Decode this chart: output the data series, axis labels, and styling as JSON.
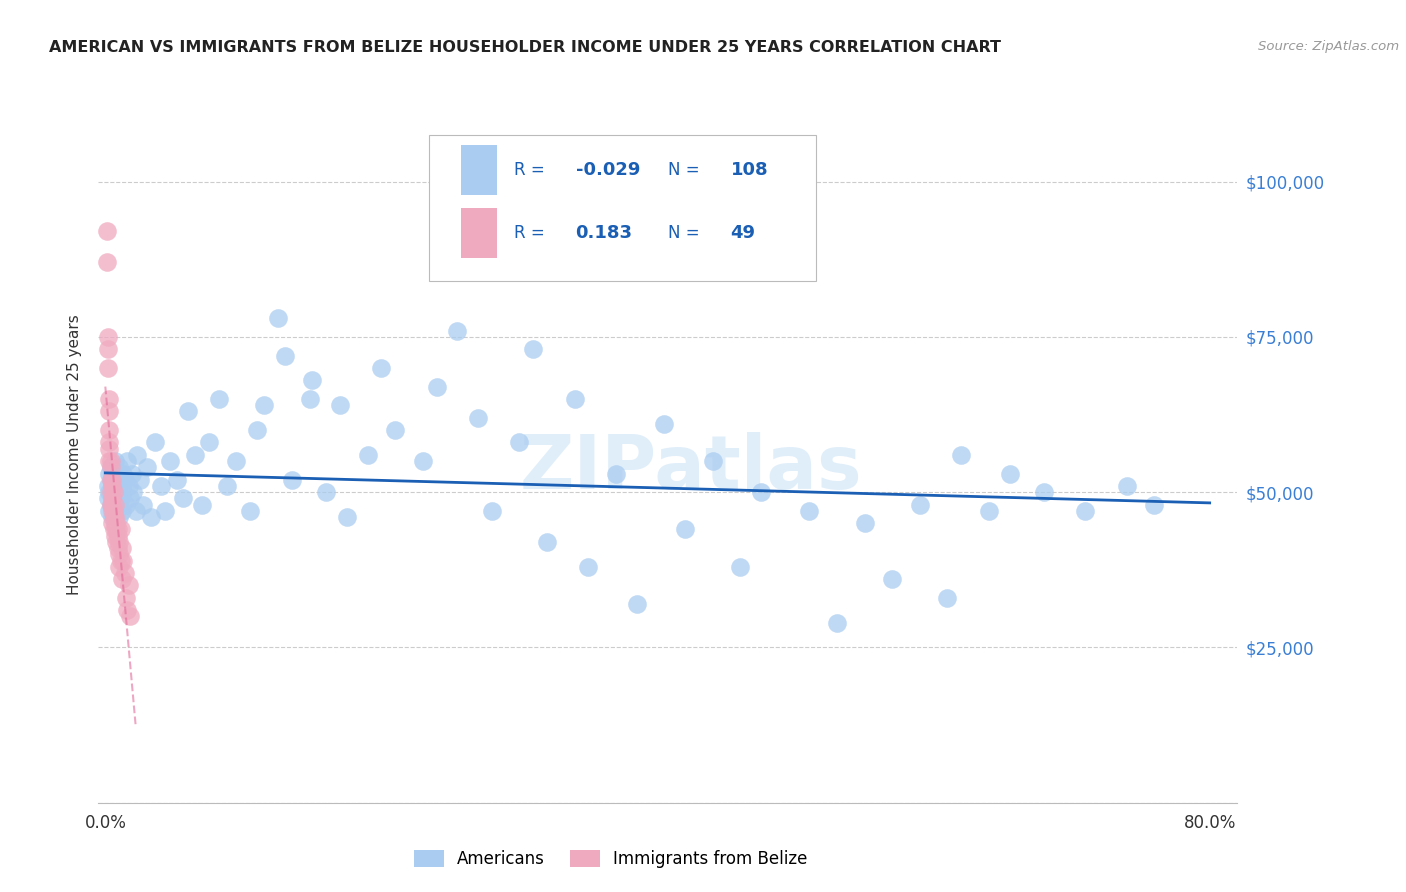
{
  "title": "AMERICAN VS IMMIGRANTS FROM BELIZE HOUSEHOLDER INCOME UNDER 25 YEARS CORRELATION CHART",
  "source": "Source: ZipAtlas.com",
  "ylabel": "Householder Income Under 25 years",
  "xlim": [
    -0.005,
    0.82
  ],
  "ylim": [
    0,
    112000
  ],
  "yticks": [
    0,
    25000,
    50000,
    75000,
    100000
  ],
  "ytick_labels": [
    "",
    "$25,000",
    "$50,000",
    "$75,000",
    "$100,000"
  ],
  "watermark": "ZIPatlas",
  "blue_color": "#aaccf0",
  "pink_color": "#f0aac0",
  "trendline_blue": "#1a5fb4",
  "trendline_pink": "#e06090",
  "americans_x": [
    0.002,
    0.002,
    0.003,
    0.003,
    0.003,
    0.004,
    0.004,
    0.004,
    0.005,
    0.005,
    0.005,
    0.005,
    0.006,
    0.006,
    0.006,
    0.006,
    0.007,
    0.007,
    0.007,
    0.007,
    0.007,
    0.008,
    0.008,
    0.008,
    0.008,
    0.009,
    0.009,
    0.009,
    0.01,
    0.01,
    0.01,
    0.01,
    0.011,
    0.011,
    0.012,
    0.012,
    0.013,
    0.013,
    0.014,
    0.015,
    0.016,
    0.017,
    0.018,
    0.019,
    0.02,
    0.022,
    0.023,
    0.025,
    0.027,
    0.03,
    0.033,
    0.036,
    0.04,
    0.043,
    0.047,
    0.052,
    0.056,
    0.06,
    0.065,
    0.07,
    0.075,
    0.082,
    0.088,
    0.095,
    0.105,
    0.115,
    0.125,
    0.135,
    0.148,
    0.16,
    0.175,
    0.19,
    0.21,
    0.23,
    0.255,
    0.28,
    0.31,
    0.34,
    0.37,
    0.405,
    0.44,
    0.475,
    0.51,
    0.55,
    0.59,
    0.62,
    0.655,
    0.68,
    0.71,
    0.74,
    0.76,
    0.385,
    0.42,
    0.46,
    0.53,
    0.57,
    0.61,
    0.64,
    0.32,
    0.35,
    0.27,
    0.3,
    0.24,
    0.2,
    0.17,
    0.15,
    0.13,
    0.11
  ],
  "americans_y": [
    51000,
    49000,
    53000,
    47000,
    50000,
    52000,
    48000,
    54000,
    46000,
    51000,
    49000,
    53000,
    50000,
    48000,
    52000,
    46000,
    51000,
    49000,
    53000,
    47000,
    55000,
    50000,
    48000,
    52000,
    46000,
    51000,
    49000,
    53000,
    50000,
    48000,
    54000,
    46000,
    52000,
    49000,
    51000,
    47000,
    53000,
    50000,
    52000,
    48000,
    55000,
    51000,
    49000,
    53000,
    50000,
    47000,
    56000,
    52000,
    48000,
    54000,
    46000,
    58000,
    51000,
    47000,
    55000,
    52000,
    49000,
    63000,
    56000,
    48000,
    58000,
    65000,
    51000,
    55000,
    47000,
    64000,
    78000,
    52000,
    65000,
    50000,
    46000,
    56000,
    60000,
    55000,
    76000,
    47000,
    73000,
    65000,
    53000,
    61000,
    55000,
    50000,
    47000,
    45000,
    48000,
    56000,
    53000,
    50000,
    47000,
    51000,
    48000,
    32000,
    44000,
    38000,
    29000,
    36000,
    33000,
    47000,
    42000,
    38000,
    62000,
    58000,
    67000,
    70000,
    64000,
    68000,
    72000,
    60000
  ],
  "belize_x": [
    0.001,
    0.001,
    0.002,
    0.002,
    0.002,
    0.003,
    0.003,
    0.003,
    0.003,
    0.003,
    0.003,
    0.004,
    0.004,
    0.004,
    0.004,
    0.004,
    0.005,
    0.005,
    0.005,
    0.005,
    0.005,
    0.005,
    0.006,
    0.006,
    0.006,
    0.006,
    0.007,
    0.007,
    0.007,
    0.007,
    0.008,
    0.008,
    0.008,
    0.009,
    0.009,
    0.009,
    0.01,
    0.01,
    0.01,
    0.011,
    0.011,
    0.012,
    0.012,
    0.013,
    0.014,
    0.015,
    0.016,
    0.017,
    0.018
  ],
  "belize_y": [
    92000,
    87000,
    75000,
    73000,
    70000,
    65000,
    63000,
    60000,
    58000,
    55000,
    57000,
    54000,
    52000,
    50000,
    55000,
    48000,
    51000,
    49000,
    47000,
    52000,
    45000,
    48000,
    50000,
    47000,
    44000,
    46000,
    48000,
    45000,
    43000,
    46000,
    44000,
    42000,
    45000,
    43000,
    41000,
    44000,
    40000,
    38000,
    42000,
    44000,
    39000,
    41000,
    36000,
    39000,
    37000,
    33000,
    31000,
    35000,
    30000
  ]
}
